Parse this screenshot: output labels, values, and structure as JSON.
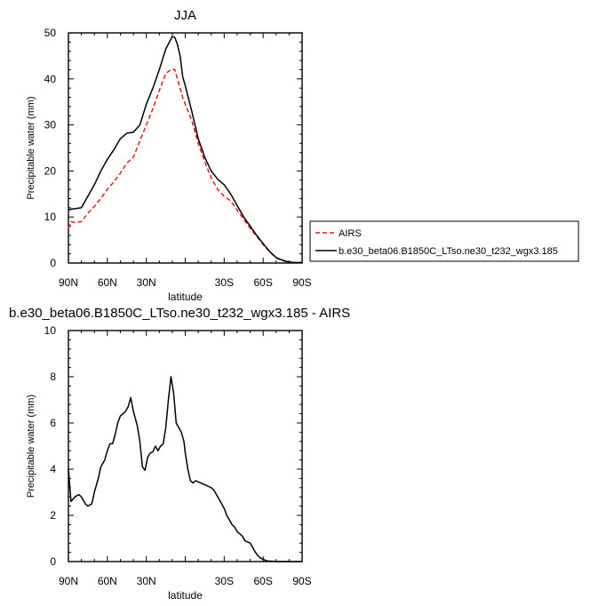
{
  "chart_data": [
    {
      "type": "line",
      "title": "JJA",
      "xlabel": "latitude",
      "ylabel": "Precipitable water (mm)",
      "xlim": [
        90,
        -90
      ],
      "ylim": [
        0,
        50
      ],
      "xticks": [
        90,
        60,
        30,
        0,
        -30,
        -60,
        -90
      ],
      "xtick_labels": [
        "90N",
        "60N",
        "30N",
        "",
        "30S",
        "60S",
        "90S"
      ],
      "yticks": [
        0,
        10,
        20,
        30,
        40,
        50
      ],
      "ytick_labels": [
        "0",
        "10",
        "20",
        "30",
        "40",
        "50"
      ],
      "grid": false,
      "legend": "right",
      "series": [
        {
          "name": "AIRS",
          "color": "#e41a1c",
          "dash": "dashed",
          "x": [
            90,
            88,
            85,
            80,
            75,
            70,
            65,
            60,
            55,
            50,
            45,
            40,
            35,
            30,
            25,
            20,
            15,
            10,
            8,
            6,
            4,
            2,
            0,
            -5,
            -10,
            -15,
            -20,
            -25,
            -30,
            -35,
            -40,
            -45,
            -50,
            -55,
            -60,
            -65,
            -70,
            -75,
            -80,
            -85,
            -90
          ],
          "y": [
            7.5,
            9,
            8.8,
            9,
            10.8,
            12.3,
            14,
            16,
            17.6,
            19.5,
            21.7,
            23,
            26.5,
            30,
            33.5,
            37.5,
            41.2,
            42.2,
            42,
            40,
            38,
            36,
            34.5,
            31,
            26,
            22,
            18.5,
            16,
            14.5,
            13.5,
            11.5,
            9.5,
            7.5,
            5.8,
            4,
            2.4,
            1.1,
            0.5,
            0.2,
            0.1,
            0.1
          ]
        },
        {
          "name": "b.e30_beta06.B1850C_LTso.ne30_t232_wgx3.185",
          "color": "#000000",
          "dash": "solid",
          "x": [
            90,
            88,
            85,
            80,
            75,
            70,
            65,
            60,
            55,
            50,
            45,
            40,
            35,
            30,
            25,
            20,
            15,
            10,
            8,
            6,
            4,
            2,
            0,
            -5,
            -10,
            -15,
            -20,
            -25,
            -30,
            -35,
            -40,
            -45,
            -50,
            -55,
            -60,
            -65,
            -70,
            -75,
            -80,
            -85,
            -90
          ],
          "y": [
            11.5,
            11.7,
            11.8,
            12,
            14.5,
            17,
            20,
            22.5,
            24.6,
            27,
            28.2,
            28.4,
            30,
            34.5,
            38,
            42,
            46.5,
            49.2,
            49,
            47.5,
            45,
            40.5,
            38.5,
            33,
            27,
            23,
            20,
            18.2,
            17,
            15,
            12.5,
            10,
            8,
            6,
            4.2,
            2.5,
            1.2,
            0.6,
            0.2,
            0.1,
            0.1
          ]
        }
      ]
    },
    {
      "type": "line",
      "title": "b.e30_beta06.B1850C_LTso.ne30_t232_wgx3.185 - AIRS",
      "xlabel": "latitude",
      "ylabel": "Precipitable water (mm)",
      "xlim": [
        90,
        -90
      ],
      "ylim": [
        0,
        10
      ],
      "xticks": [
        90,
        60,
        30,
        0,
        -30,
        -60,
        -90
      ],
      "xtick_labels": [
        "90N",
        "60N",
        "30N",
        "",
        "30S",
        "60S",
        "90S"
      ],
      "yticks": [
        0,
        2,
        4,
        6,
        8,
        10
      ],
      "ytick_labels": [
        "0",
        "2",
        "4",
        "6",
        "8",
        "10"
      ],
      "grid": false,
      "series": [
        {
          "color": "#000000",
          "dash": "solid",
          "x": [
            90,
            88,
            85,
            82,
            80,
            77,
            75,
            72,
            70,
            67,
            65,
            62,
            60,
            58,
            56,
            54,
            52,
            50,
            48,
            46,
            44,
            42,
            40,
            37,
            35,
            33,
            31,
            29,
            27,
            25,
            23,
            21,
            19,
            17,
            15,
            13,
            11,
            9,
            7,
            5,
            3,
            1,
            0,
            -2,
            -4,
            -6,
            -8,
            -10,
            -12,
            -14,
            -16,
            -18,
            -20,
            -22,
            -24,
            -26,
            -28,
            -30,
            -32,
            -34,
            -36,
            -38,
            -40,
            -42,
            -44,
            -46,
            -48,
            -50,
            -52,
            -54,
            -56,
            -58,
            -60,
            -62,
            -64,
            -66,
            -68,
            -70,
            -72,
            -74,
            -76,
            -78,
            -80,
            -82,
            -84,
            -86,
            -88,
            -90
          ],
          "y": [
            4,
            2.6,
            2.8,
            2.9,
            2.8,
            2.5,
            2.4,
            2.5,
            3,
            3.6,
            4.1,
            4.4,
            4.8,
            5.1,
            5.1,
            5.5,
            6,
            6.3,
            6.4,
            6.5,
            6.7,
            7.1,
            6.5,
            5.9,
            5.2,
            4.1,
            3.95,
            4.5,
            4.7,
            4.75,
            5,
            4.8,
            5,
            5.1,
            5.8,
            7,
            8,
            7.3,
            6,
            5.8,
            5.6,
            5.2,
            4.7,
            4,
            3.5,
            3.4,
            3.5,
            3.45,
            3.4,
            3.35,
            3.3,
            3.25,
            3.2,
            3.1,
            2.9,
            2.7,
            2.5,
            2.3,
            2,
            1.8,
            1.6,
            1.5,
            1.3,
            1.2,
            1.1,
            0.9,
            0.85,
            0.8,
            0.6,
            0.4,
            0.25,
            0.15,
            0.1,
            0.05,
            0.02,
            0.02,
            0.01,
            0,
            0,
            0,
            0,
            0,
            0,
            0,
            0,
            0,
            0,
            0
          ]
        }
      ]
    }
  ]
}
